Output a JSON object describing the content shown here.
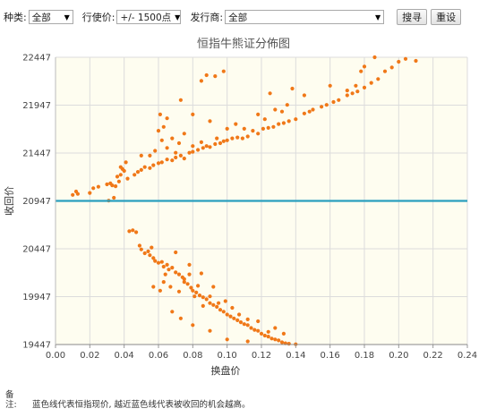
{
  "filters": {
    "type_label": "种类:",
    "type_value": "全部",
    "strike_label": "行使价:",
    "strike_value": "+/- 1500点",
    "issuer_label": "发行商:",
    "issuer_value": "全部",
    "search_button": "搜寻",
    "reset_button": "重设"
  },
  "note": {
    "label": "备注:",
    "text": "蓝色线代表恒指现价, 越近蓝色线代表被收回的机会越高。"
  },
  "colors": {
    "points": "#f07818",
    "current_index_line": "#2a9fbe",
    "plot_background": "#fefdf0"
  },
  "chart_data": {
    "type": "scatter",
    "title": "恒指牛熊证分佈图",
    "xlabel": "换盘价",
    "ylabel": "收回价",
    "xlim": [
      0,
      0.24
    ],
    "ylim": [
      19447,
      22447
    ],
    "x_ticks": [
      "0.00",
      "0.02",
      "0.04",
      "0.06",
      "0.08",
      "0.10",
      "0.12",
      "0.14",
      "0.16",
      "0.18",
      "0.20",
      "0.22",
      "0.24"
    ],
    "y_ticks": [
      "19447",
      "19947",
      "20447",
      "20947",
      "21447",
      "21947",
      "22447"
    ],
    "grid": true,
    "reference_line": {
      "y": 20947
    },
    "series": [
      {
        "points": [
          [
            0.01,
            21010
          ],
          [
            0.012,
            21045
          ],
          [
            0.013,
            21020
          ],
          [
            0.02,
            21030
          ],
          [
            0.022,
            21080
          ],
          [
            0.025,
            21095
          ],
          [
            0.03,
            21120
          ],
          [
            0.031,
            20950
          ],
          [
            0.032,
            21130
          ],
          [
            0.033,
            21110
          ],
          [
            0.034,
            20980
          ],
          [
            0.035,
            21100
          ],
          [
            0.036,
            21200
          ],
          [
            0.037,
            21150
          ],
          [
            0.038,
            21220
          ],
          [
            0.039,
            21280
          ],
          [
            0.04,
            21260
          ],
          [
            0.041,
            21350
          ],
          [
            0.046,
            21220
          ],
          [
            0.048,
            21250
          ],
          [
            0.05,
            21270
          ],
          [
            0.052,
            21300
          ],
          [
            0.055,
            21290
          ],
          [
            0.057,
            21320
          ],
          [
            0.06,
            21340
          ],
          [
            0.062,
            21350
          ],
          [
            0.065,
            21380
          ],
          [
            0.068,
            21370
          ],
          [
            0.07,
            21400
          ],
          [
            0.073,
            21420
          ],
          [
            0.075,
            21390
          ],
          [
            0.078,
            21450
          ],
          [
            0.08,
            21460
          ],
          [
            0.083,
            21480
          ],
          [
            0.086,
            21500
          ],
          [
            0.088,
            21520
          ],
          [
            0.09,
            21510
          ],
          [
            0.093,
            21540
          ],
          [
            0.096,
            21550
          ],
          [
            0.098,
            21570
          ],
          [
            0.1,
            21580
          ],
          [
            0.103,
            21600
          ],
          [
            0.106,
            21610
          ],
          [
            0.109,
            21600
          ],
          [
            0.112,
            21620
          ],
          [
            0.115,
            21680
          ],
          [
            0.118,
            21650
          ],
          [
            0.121,
            21700
          ],
          [
            0.124,
            21710
          ],
          [
            0.127,
            21720
          ],
          [
            0.13,
            21750
          ],
          [
            0.133,
            21760
          ],
          [
            0.136,
            21780
          ],
          [
            0.14,
            21800
          ],
          [
            0.145,
            21860
          ],
          [
            0.148,
            21880
          ],
          [
            0.15,
            21900
          ],
          [
            0.155,
            21930
          ],
          [
            0.158,
            21950
          ],
          [
            0.162,
            21980
          ],
          [
            0.165,
            22000
          ],
          [
            0.17,
            22050
          ],
          [
            0.173,
            22070
          ],
          [
            0.176,
            22090
          ],
          [
            0.18,
            22130
          ],
          [
            0.184,
            22180
          ],
          [
            0.188,
            22220
          ],
          [
            0.192,
            22300
          ],
          [
            0.196,
            22340
          ],
          [
            0.2,
            22400
          ],
          [
            0.204,
            22430
          ],
          [
            0.21,
            22410
          ],
          [
            0.186,
            22447
          ],
          [
            0.18,
            22350
          ],
          [
            0.178,
            22300
          ],
          [
            0.175,
            22150
          ],
          [
            0.17,
            22100
          ],
          [
            0.16,
            22150
          ],
          [
            0.145,
            22050
          ],
          [
            0.135,
            21950
          ],
          [
            0.132,
            21880
          ],
          [
            0.125,
            22070
          ],
          [
            0.128,
            21900
          ],
          [
            0.138,
            22120
          ],
          [
            0.122,
            21800
          ],
          [
            0.118,
            21850
          ],
          [
            0.11,
            21700
          ],
          [
            0.105,
            21750
          ],
          [
            0.1,
            21700
          ],
          [
            0.094,
            21600
          ],
          [
            0.09,
            21780
          ],
          [
            0.085,
            21560
          ],
          [
            0.08,
            21520
          ],
          [
            0.075,
            21650
          ],
          [
            0.072,
            21550
          ],
          [
            0.07,
            21450
          ],
          [
            0.068,
            21600
          ],
          [
            0.065,
            21500
          ],
          [
            0.062,
            21580
          ],
          [
            0.06,
            21680
          ],
          [
            0.063,
            21720
          ],
          [
            0.065,
            21810
          ],
          [
            0.061,
            21850
          ],
          [
            0.073,
            22000
          ],
          [
            0.08,
            21850
          ],
          [
            0.085,
            22200
          ],
          [
            0.088,
            22260
          ],
          [
            0.093,
            22250
          ],
          [
            0.098,
            22300
          ],
          [
            0.05,
            21420
          ],
          [
            0.042,
            21180
          ],
          [
            0.038,
            21300
          ],
          [
            0.055,
            21420
          ],
          [
            0.058,
            21470
          ],
          [
            0.043,
            20630
          ],
          [
            0.045,
            20640
          ],
          [
            0.047,
            20620
          ],
          [
            0.049,
            20480
          ],
          [
            0.05,
            20440
          ],
          [
            0.052,
            20400
          ],
          [
            0.054,
            20420
          ],
          [
            0.055,
            20380
          ],
          [
            0.056,
            20460
          ],
          [
            0.057,
            20350
          ],
          [
            0.058,
            20320
          ],
          [
            0.06,
            20300
          ],
          [
            0.062,
            20310
          ],
          [
            0.063,
            20260
          ],
          [
            0.065,
            20280
          ],
          [
            0.066,
            20230
          ],
          [
            0.068,
            20250
          ],
          [
            0.07,
            20200
          ],
          [
            0.072,
            20180
          ],
          [
            0.074,
            20150
          ],
          [
            0.075,
            20100
          ],
          [
            0.077,
            20080
          ],
          [
            0.079,
            20040
          ],
          [
            0.08,
            20010
          ],
          [
            0.082,
            19990
          ],
          [
            0.084,
            19960
          ],
          [
            0.086,
            19940
          ],
          [
            0.088,
            19920
          ],
          [
            0.09,
            19880
          ],
          [
            0.092,
            19860
          ],
          [
            0.094,
            19840
          ],
          [
            0.096,
            19810
          ],
          [
            0.098,
            19790
          ],
          [
            0.1,
            19760
          ],
          [
            0.102,
            19740
          ],
          [
            0.104,
            19720
          ],
          [
            0.106,
            19700
          ],
          [
            0.108,
            19680
          ],
          [
            0.11,
            19660
          ],
          [
            0.112,
            19650
          ],
          [
            0.114,
            19620
          ],
          [
            0.116,
            19600
          ],
          [
            0.118,
            19590
          ],
          [
            0.12,
            19560
          ],
          [
            0.122,
            19540
          ],
          [
            0.124,
            19530
          ],
          [
            0.126,
            19510
          ],
          [
            0.128,
            19500
          ],
          [
            0.13,
            19490
          ],
          [
            0.132,
            19470
          ],
          [
            0.134,
            19460
          ],
          [
            0.136,
            19455
          ],
          [
            0.14,
            19450
          ],
          [
            0.057,
            20050
          ],
          [
            0.063,
            20100
          ],
          [
            0.067,
            20050
          ],
          [
            0.072,
            20000
          ],
          [
            0.075,
            20130
          ],
          [
            0.078,
            20180
          ],
          [
            0.081,
            19950
          ],
          [
            0.083,
            20060
          ],
          [
            0.086,
            19850
          ],
          [
            0.09,
            19950
          ],
          [
            0.095,
            19880
          ],
          [
            0.099,
            19900
          ],
          [
            0.103,
            19830
          ],
          [
            0.107,
            19760
          ],
          [
            0.112,
            19710
          ],
          [
            0.118,
            19690
          ],
          [
            0.124,
            19580
          ],
          [
            0.128,
            19620
          ],
          [
            0.133,
            19560
          ],
          [
            0.061,
            20010
          ],
          [
            0.068,
            19790
          ],
          [
            0.073,
            19720
          ],
          [
            0.08,
            19650
          ],
          [
            0.09,
            19590
          ],
          [
            0.1,
            19500
          ],
          [
            0.112,
            19480
          ],
          [
            0.085,
            20190
          ],
          [
            0.07,
            20410
          ],
          [
            0.064,
            20180
          ],
          [
            0.078,
            20280
          ],
          [
            0.092,
            20050
          ]
        ]
      }
    ]
  }
}
